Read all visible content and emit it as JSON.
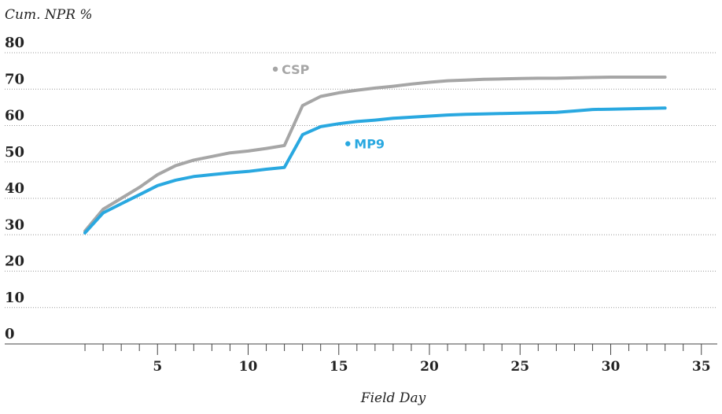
{
  "chart_data": {
    "type": "line",
    "ylabel": "Cum. NPR %",
    "xlabel": "Field Day",
    "ylim": [
      0,
      80
    ],
    "xlim": [
      0,
      35.5
    ],
    "yticks": [
      0,
      10,
      20,
      30,
      40,
      50,
      60,
      70,
      80
    ],
    "xtick_labels": [
      5,
      10,
      15,
      20,
      25,
      30,
      35
    ],
    "xtick_minor_step": 1,
    "grid": true,
    "colors": {
      "CSP": "#a6a6a6",
      "MP9": "#29a8e0"
    },
    "series": [
      {
        "name": "CSP",
        "x": [
          1,
          2,
          3,
          4,
          5,
          6,
          7,
          8,
          9,
          10,
          11,
          12,
          13,
          14,
          15,
          16,
          17,
          18,
          19,
          20,
          21,
          22,
          23,
          24,
          25,
          26,
          27,
          28,
          29,
          30,
          31,
          32,
          33
        ],
        "values": [
          31,
          37,
          40,
          43,
          46.5,
          49,
          50.5,
          51.5,
          52.5,
          53,
          53.7,
          54.5,
          65.5,
          68,
          69,
          69.7,
          70.3,
          70.8,
          71.4,
          71.9,
          72.3,
          72.5,
          72.7,
          72.8,
          72.9,
          73,
          73,
          73.1,
          73.2,
          73.3,
          73.3,
          73.3,
          73.3
        ]
      },
      {
        "name": "MP9",
        "x": [
          1,
          2,
          3,
          4,
          5,
          6,
          7,
          8,
          9,
          10,
          11,
          12,
          13,
          14,
          15,
          16,
          17,
          18,
          19,
          20,
          21,
          22,
          23,
          24,
          25,
          26,
          27,
          28,
          29,
          30,
          31,
          32,
          33
        ],
        "values": [
          30.5,
          36,
          38.5,
          41,
          43.5,
          45,
          46,
          46.5,
          47,
          47.4,
          48,
          48.5,
          57.5,
          59.7,
          60.5,
          61.1,
          61.5,
          62,
          62.3,
          62.6,
          62.9,
          63.1,
          63.2,
          63.3,
          63.4,
          63.5,
          63.6,
          64,
          64.4,
          64.5,
          64.6,
          64.7,
          64.8
        ]
      }
    ]
  }
}
